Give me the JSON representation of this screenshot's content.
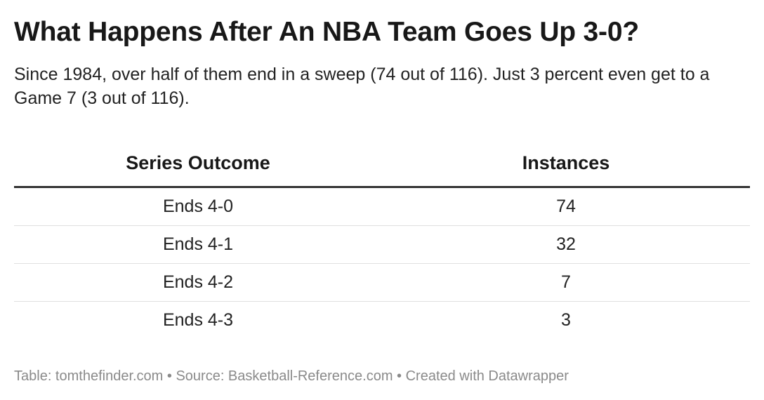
{
  "title": "What Happens After An NBA Team Goes Up 3-0?",
  "subtitle": "Since 1984, over half of them end in a sweep (74 out of 116). Just 3 percent even get to a Game 7 (3 out of 116).",
  "footer": "Table: tomthefinder.com • Source: Basketball-Reference.com • Created with Datawrapper",
  "chart_data": {
    "type": "table",
    "title": "What Happens After An NBA Team Goes Up 3-0?",
    "columns": [
      "Series Outcome",
      "Instances"
    ],
    "rows": [
      [
        "Ends 4-0",
        "74"
      ],
      [
        "Ends 4-1",
        "32"
      ],
      [
        "Ends 4-2",
        "7"
      ],
      [
        "Ends 4-3",
        "3"
      ]
    ]
  }
}
